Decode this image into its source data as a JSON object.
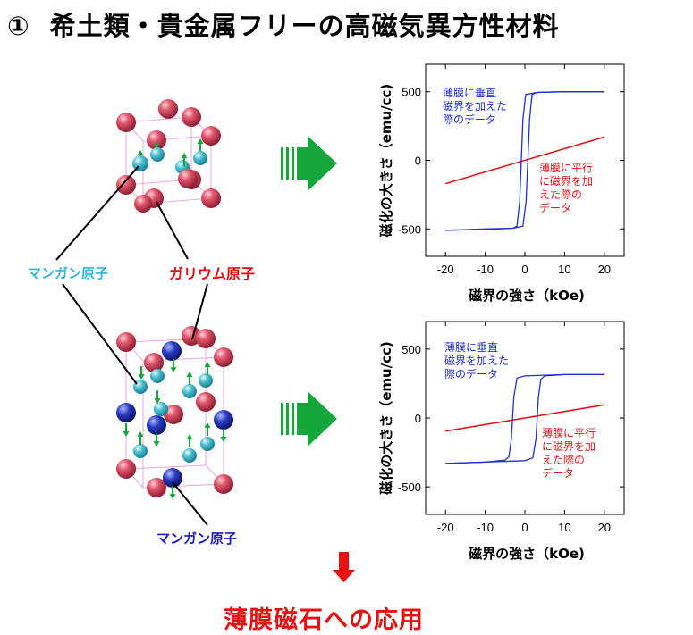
{
  "title": {
    "number": "①",
    "text": "希土類・貴金属フリーの高磁気異方性材料"
  },
  "labels": {
    "manganese_top": "マンガン原子",
    "gallium": "ガリウム原子",
    "manganese_bottom": "マンガン原子"
  },
  "bottom_text": "薄膜磁石への応用",
  "colors": {
    "gallium": "#d8485e",
    "manganese_cyan": "#3fb9cc",
    "manganese_blue": "#2335b8",
    "perpendicular": "#1f2fd0",
    "parallel": "#e01818",
    "arrow": "#16a63c",
    "application_arrow": "#e81010"
  },
  "chart_data": [
    {
      "type": "line",
      "xlabel": "磁界の強さ（kOe)",
      "ylabel": "磁化の大きさ（emu/cc)",
      "xlim": [
        -25,
        25
      ],
      "ylim": [
        -700,
        700
      ],
      "xticks": [
        -20,
        -10,
        0,
        10,
        20
      ],
      "yticks": [
        500,
        0,
        -500
      ],
      "series": [
        {
          "annotation": "薄膜に垂直\n磁界を加えた\n際のデータ",
          "color": "#1f2fd0",
          "points_descending": [
            [
              20,
              500
            ],
            [
              10,
              500
            ],
            [
              3,
              495
            ],
            [
              1.8,
              480
            ],
            [
              1.2,
              300
            ],
            [
              0.3,
              -300
            ],
            [
              -0.5,
              -480
            ],
            [
              -3,
              -495
            ],
            [
              -10,
              -500
            ],
            [
              -20,
              -510
            ]
          ],
          "points_ascending": [
            [
              -20,
              -510
            ],
            [
              -10,
              -505
            ],
            [
              -3,
              -495
            ],
            [
              -2,
              -480
            ],
            [
              -1.3,
              -300
            ],
            [
              -0.5,
              300
            ],
            [
              0.2,
              480
            ],
            [
              3,
              495
            ],
            [
              10,
              500
            ],
            [
              20,
              500
            ]
          ]
        },
        {
          "annotation": "薄膜に平行\nに磁界を加\nえた際の\nデータ",
          "color": "#e01818",
          "points": [
            [
              -20,
              -170
            ],
            [
              20,
              170
            ]
          ]
        }
      ]
    },
    {
      "type": "line",
      "xlabel": "磁界の強さ（kOe)",
      "ylabel": "磁化の大きさ（emu/cc)",
      "xlim": [
        -25,
        25
      ],
      "ylim": [
        -700,
        700
      ],
      "xticks": [
        -20,
        -10,
        0,
        10,
        20
      ],
      "yticks": [
        500,
        0,
        -500
      ],
      "series": [
        {
          "annotation": "薄膜に垂直\n磁界を加えた\n際のデータ",
          "color": "#1f2fd0",
          "points_descending": [
            [
              20,
              315
            ],
            [
              10,
              315
            ],
            [
              5,
              305
            ],
            [
              4,
              280
            ],
            [
              3.4,
              150
            ],
            [
              2.8,
              -150
            ],
            [
              2,
              -290
            ],
            [
              0,
              -310
            ],
            [
              -10,
              -320
            ],
            [
              -20,
              -330
            ]
          ],
          "points_ascending": [
            [
              -20,
              -330
            ],
            [
              -10,
              -320
            ],
            [
              -5,
              -305
            ],
            [
              -4,
              -280
            ],
            [
              -3.4,
              -150
            ],
            [
              -2.8,
              150
            ],
            [
              -2,
              290
            ],
            [
              0,
              305
            ],
            [
              10,
              315
            ],
            [
              20,
              315
            ]
          ]
        },
        {
          "annotation": "薄膜に平行\nに磁界を加\nえた際の\nデータ",
          "color": "#e01818",
          "points": [
            [
              -20,
              -95
            ],
            [
              20,
              95
            ]
          ]
        }
      ]
    }
  ]
}
